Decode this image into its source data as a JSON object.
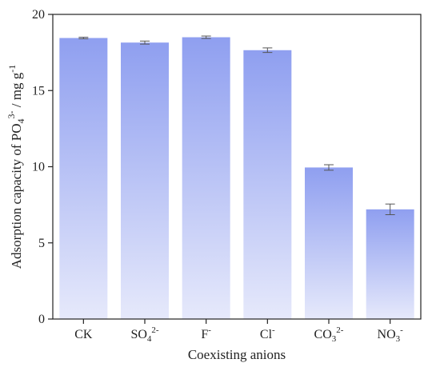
{
  "chart_data": {
    "type": "bar",
    "categories": [
      {
        "base": "CK",
        "sub": "",
        "sup": ""
      },
      {
        "base": "SO",
        "sub": "4",
        "sup": "2-"
      },
      {
        "base": "F",
        "sub": "",
        "sup": "-"
      },
      {
        "base": "Cl",
        "sub": "",
        "sup": "-"
      },
      {
        "base": "CO",
        "sub": "3",
        "sup": "2-"
      },
      {
        "base": "NO",
        "sub": "3",
        "sup": "-"
      }
    ],
    "values": [
      18.45,
      18.15,
      18.5,
      17.65,
      9.95,
      7.2
    ],
    "errors": [
      0.05,
      0.1,
      0.08,
      0.15,
      0.18,
      0.35
    ],
    "xlabel": "Coexisting anions",
    "ylabel": {
      "pre": "Adsorption capacity of PO",
      "sub": "4",
      "sup": "3-",
      "post": " / mg g",
      "sup2": "-1"
    },
    "ylim": [
      0,
      20
    ],
    "yticks": [
      0,
      5,
      10,
      15,
      20
    ],
    "colors": {
      "bar_top": "#8f9ff0",
      "bar_bottom": "#e6e9fb",
      "axis": "#222222"
    }
  }
}
